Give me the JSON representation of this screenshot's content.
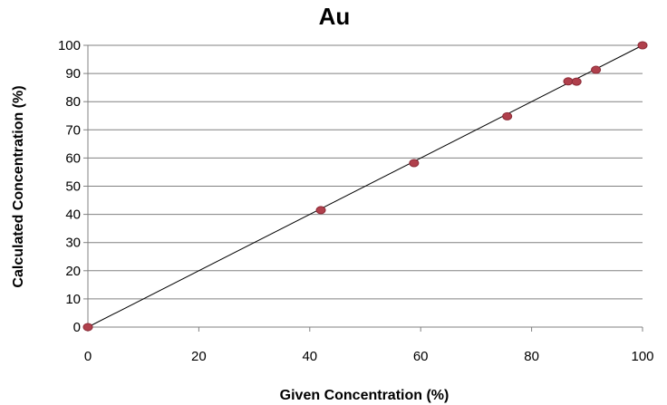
{
  "chart_data": {
    "type": "scatter",
    "title": "Au",
    "xlabel": "Given Concentration (%)",
    "ylabel": "Calculated Concentration (%)",
    "xlim": [
      0,
      100
    ],
    "ylim": [
      0,
      100
    ],
    "x_ticks": [
      0,
      20,
      40,
      60,
      80,
      100
    ],
    "y_ticks": [
      0,
      10,
      20,
      30,
      40,
      50,
      60,
      70,
      80,
      90,
      100
    ],
    "grid": "horizontal",
    "legend": "none",
    "points": [
      {
        "x": 0,
        "y": 0
      },
      {
        "x": 42,
        "y": 41.5
      },
      {
        "x": 58.8,
        "y": 58.2
      },
      {
        "x": 75.6,
        "y": 74.8
      },
      {
        "x": 86.6,
        "y": 87.2
      },
      {
        "x": 88.1,
        "y": 87.1
      },
      {
        "x": 91.6,
        "y": 91.3
      },
      {
        "x": 100,
        "y": 100
      }
    ],
    "trendline": {
      "x": [
        0,
        100
      ],
      "y": [
        0,
        100
      ]
    },
    "colors": {
      "marker_fill": "#b0404c",
      "marker_stroke": "#8c2a36",
      "trendline": "#000000",
      "grid": "#808080",
      "axis": "#808080"
    }
  }
}
